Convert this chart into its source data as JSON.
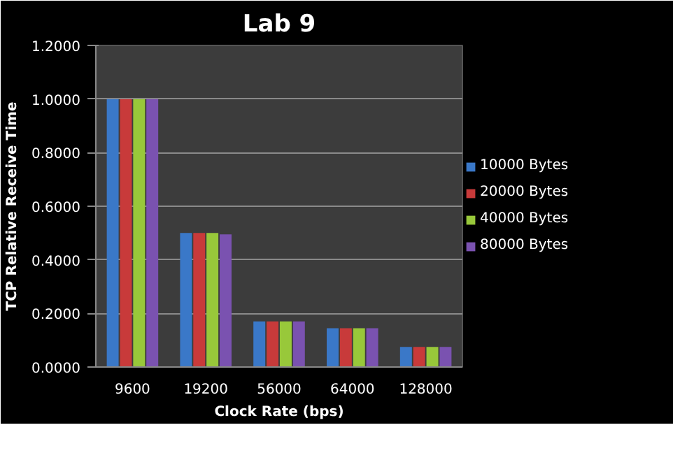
{
  "chart_data": {
    "type": "bar",
    "title": "Lab 9",
    "xlabel": "Clock Rate (bps)",
    "ylabel": "TCP Relative Receive Time",
    "categories": [
      "9600",
      "19200",
      "56000",
      "64000",
      "128000"
    ],
    "series": [
      {
        "name": "10000 Bytes",
        "color": "#3a78c8",
        "values": [
          1.0,
          0.5,
          0.17,
          0.145,
          0.075
        ]
      },
      {
        "name": "20000 Bytes",
        "color": "#c83a3a",
        "values": [
          1.0,
          0.5,
          0.17,
          0.145,
          0.075
        ]
      },
      {
        "name": "40000 Bytes",
        "color": "#98c83a",
        "values": [
          1.0,
          0.5,
          0.17,
          0.145,
          0.075
        ]
      },
      {
        "name": "80000 Bytes",
        "color": "#7a52b0",
        "values": [
          1.0,
          0.495,
          0.17,
          0.145,
          0.075
        ]
      }
    ],
    "ylim": [
      0,
      1.2
    ],
    "yticks": [
      {
        "value": 0,
        "label": "0.0000"
      },
      {
        "value": 0.2,
        "label": "0.2000"
      },
      {
        "value": 0.4,
        "label": "0.4000"
      },
      {
        "value": 0.6,
        "label": "0.6000"
      },
      {
        "value": 0.8,
        "label": "0.8000"
      },
      {
        "value": 1.0,
        "label": "1.0000"
      },
      {
        "value": 1.2,
        "label": "1.2000"
      }
    ],
    "grid": "y",
    "legend": "right"
  }
}
